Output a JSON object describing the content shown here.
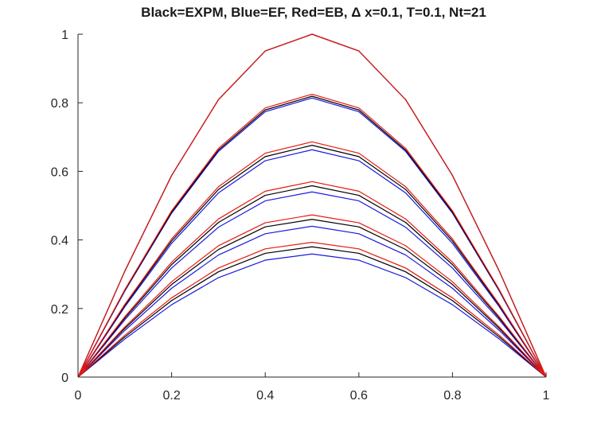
{
  "chart_data": {
    "type": "line",
    "title": "Black=EXPM, Blue=EF, Red=EB, Δ x=0.1, T=0.1, Nt=21",
    "xlabel": "",
    "ylabel": "",
    "xlim": [
      0,
      1
    ],
    "ylim": [
      0,
      1
    ],
    "x_ticks": [
      "0",
      "0.2",
      "0.4",
      "0.6",
      "0.8",
      "1"
    ],
    "y_ticks": [
      "0",
      "0.2",
      "0.4",
      "0.6",
      "0.8",
      "1"
    ],
    "grid": false,
    "box": "axes-left-bottom",
    "x": [
      0,
      0.1,
      0.2,
      0.3,
      0.4,
      0.5,
      0.6,
      0.7,
      0.8,
      0.9,
      1.0
    ],
    "series": [
      {
        "name": "EXPM",
        "color": "#000000",
        "curves": [
          [
            0,
            0.309,
            0.588,
            0.809,
            0.951,
            1.0,
            0.951,
            0.809,
            0.588,
            0.309,
            0
          ],
          [
            0,
            0.253,
            0.481,
            0.662,
            0.779,
            0.819,
            0.779,
            0.662,
            0.481,
            0.253,
            0
          ],
          [
            0,
            0.209,
            0.397,
            0.547,
            0.643,
            0.676,
            0.643,
            0.547,
            0.397,
            0.209,
            0
          ],
          [
            0,
            0.172,
            0.328,
            0.451,
            0.53,
            0.558,
            0.53,
            0.451,
            0.328,
            0.172,
            0
          ],
          [
            0,
            0.142,
            0.27,
            0.372,
            0.438,
            0.46,
            0.438,
            0.372,
            0.27,
            0.142,
            0
          ],
          [
            0,
            0.117,
            0.223,
            0.307,
            0.361,
            0.38,
            0.361,
            0.307,
            0.223,
            0.117,
            0
          ]
        ]
      },
      {
        "name": "EF",
        "color": "#1a1adf",
        "curves": [
          [
            0,
            0.309,
            0.588,
            0.809,
            0.951,
            1.0,
            0.951,
            0.809,
            0.588,
            0.309,
            0
          ],
          [
            0,
            0.251,
            0.478,
            0.658,
            0.774,
            0.814,
            0.774,
            0.658,
            0.478,
            0.251,
            0
          ],
          [
            0,
            0.205,
            0.39,
            0.537,
            0.631,
            0.663,
            0.631,
            0.537,
            0.39,
            0.205,
            0
          ],
          [
            0,
            0.167,
            0.318,
            0.437,
            0.514,
            0.54,
            0.514,
            0.437,
            0.318,
            0.167,
            0
          ],
          [
            0,
            0.136,
            0.259,
            0.356,
            0.418,
            0.44,
            0.418,
            0.356,
            0.259,
            0.136,
            0
          ],
          [
            0,
            0.111,
            0.211,
            0.29,
            0.341,
            0.359,
            0.341,
            0.29,
            0.211,
            0.111,
            0
          ]
        ]
      },
      {
        "name": "EB",
        "color": "#e8190f",
        "curves": [
          [
            0,
            0.309,
            0.588,
            0.809,
            0.951,
            1.0,
            0.951,
            0.809,
            0.588,
            0.309,
            0
          ],
          [
            0,
            0.255,
            0.485,
            0.667,
            0.785,
            0.825,
            0.785,
            0.667,
            0.485,
            0.255,
            0
          ],
          [
            0,
            0.212,
            0.403,
            0.555,
            0.653,
            0.686,
            0.653,
            0.555,
            0.403,
            0.212,
            0
          ],
          [
            0,
            0.176,
            0.335,
            0.461,
            0.542,
            0.57,
            0.542,
            0.461,
            0.335,
            0.176,
            0
          ],
          [
            0,
            0.146,
            0.278,
            0.383,
            0.45,
            0.473,
            0.45,
            0.383,
            0.278,
            0.146,
            0
          ],
          [
            0,
            0.122,
            0.231,
            0.318,
            0.374,
            0.393,
            0.374,
            0.318,
            0.231,
            0.122,
            0
          ]
        ]
      }
    ]
  }
}
